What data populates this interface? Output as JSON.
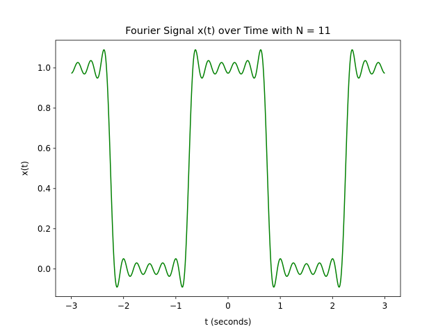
{
  "chart_data": {
    "type": "line",
    "title": "Fourier Signal x(t) over Time with N = 11",
    "xlabel": "t (seconds)",
    "ylabel": "x(t)",
    "xlim": [
      -3.3,
      3.3
    ],
    "ylim": [
      -0.1377,
      1.1377
    ],
    "x_ticks": [
      -3,
      -2,
      -1,
      0,
      1,
      2,
      3
    ],
    "x_tick_labels": [
      "−3",
      "−2",
      "−1",
      "0",
      "1",
      "2",
      "3"
    ],
    "y_ticks": [
      0.0,
      0.2,
      0.4,
      0.6,
      0.8,
      1.0
    ],
    "y_tick_labels": [
      "0.0",
      "0.2",
      "0.4",
      "0.6",
      "0.8",
      "1.0"
    ],
    "grid": false,
    "series": [
      {
        "color": "#008000",
        "x_range": [
          -3,
          3
        ],
        "samples": 600,
        "function": "fourier_square_wave",
        "period": 3,
        "duty_half_width": 0.75,
        "harmonics": 11
      }
    ]
  }
}
